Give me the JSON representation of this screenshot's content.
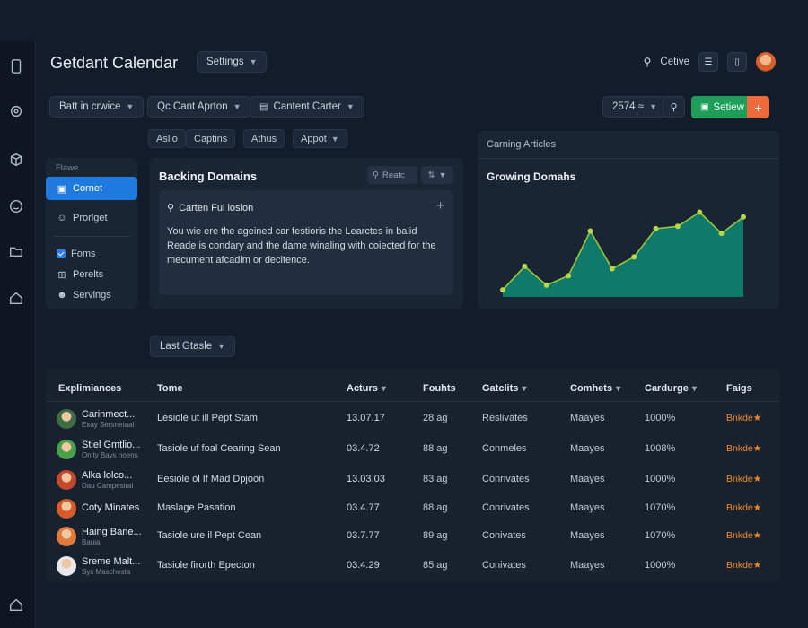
{
  "app": {
    "title": "Getdant Calendar"
  },
  "header": {
    "settings_label": "Settings",
    "search_label": "Cetive",
    "toolbar_dropdown": "Batt in crwice",
    "apps_dropdown": "Qc Cant Aprton",
    "content_dropdown": "Cantent Carter",
    "count_dropdown": "2574 ≈",
    "primary_button": "Setiew",
    "plus_button": "+"
  },
  "chips": [
    "Aslio",
    "Captins",
    "Athus",
    "Appot"
  ],
  "sidenav": {
    "section": "Flawe",
    "items": [
      {
        "label": "Cornet",
        "active": true
      },
      {
        "label": "Prorlget",
        "active": false
      },
      {
        "label": "Foms",
        "active": false
      },
      {
        "label": "Perelts",
        "active": false
      },
      {
        "label": "Servings",
        "active": false
      }
    ]
  },
  "mid_panel": {
    "title": "Backing Domains",
    "search_placeholder": "Reatc",
    "inner_heading": "Carten Ful losion",
    "body": "You wie ere the ageined car festioris the Learctes in balid Reade is condary and the dame winaling with coiected for the mecument afcadim or decitence."
  },
  "chart_panel": {
    "top_label": "Carning Articles",
    "title": "Growing Domahs"
  },
  "chart_data": {
    "type": "area",
    "title": "Growing Domahs",
    "x": [
      0,
      1,
      2,
      3,
      4,
      5,
      6,
      7,
      8,
      9,
      10,
      11
    ],
    "values": [
      3,
      13,
      5,
      9,
      28,
      12,
      17,
      29,
      30,
      36,
      27,
      34
    ],
    "ylim": [
      0,
      40
    ],
    "grid": false,
    "line_color": "#9ac43a",
    "fill_color": "#0f7a6a",
    "marker_color": "#b8d645"
  },
  "filter": {
    "label": "Last Gtasle"
  },
  "table": {
    "columns": [
      "Explimiances",
      "Tome",
      "Acturs",
      "Fouhts",
      "Gatclits",
      "Comhets",
      "Cardurge",
      "Faigs"
    ],
    "rows": [
      {
        "name": "Carinmect...",
        "sub": "Exay Sersnetaal",
        "tome": "Lesiole ut ill Pept Stam",
        "acturs": "13.07.17",
        "fouhts": "28 ag",
        "gate": "Reslivates",
        "com": "Maayes",
        "card": "1000%",
        "flag": "Bnkde★",
        "avatar": "#3f6b45"
      },
      {
        "name": "Stiel Gmtlio...",
        "sub": "Onity Bays noens",
        "tome": "Tasiole uf foal Cearing Sean",
        "acturs": "03.4.72",
        "fouhts": "88 ag",
        "gate": "Conmeles",
        "com": "Maayes",
        "card": "1008%",
        "flag": "Bnkde★",
        "avatar": "#4aa04a"
      },
      {
        "name": "Alka lolco...",
        "sub": "Dau Campesiral",
        "tome": "Eesiole ol If Mad Dpjoon",
        "acturs": "13.03.03",
        "fouhts": "83 ag",
        "gate": "Conrivates",
        "com": "Maayes",
        "card": "1000%",
        "flag": "Bnkde★",
        "avatar": "#c2492b"
      },
      {
        "name": "Coty Minates",
        "sub": "",
        "tome": "Maslage Pasation",
        "acturs": "03.4.77",
        "fouhts": "88 ag",
        "gate": "Conrivates",
        "com": "Maayes",
        "card": "1070%",
        "flag": "Bnkde★",
        "avatar": "#d85b2c"
      },
      {
        "name": "Haing Bane...",
        "sub": "Bauia",
        "tome": "Tasiole ure il Pept Cean",
        "acturs": "03.7.77",
        "fouhts": "89 ag",
        "gate": "Conivates",
        "com": "Maayes",
        "card": "1070%",
        "flag": "Bnkde★",
        "avatar": "#e07a3c"
      },
      {
        "name": "Sreme Malt...",
        "sub": "Sys Maschesta",
        "tome": "Tasiole firorth Epecton",
        "acturs": "03.4.29",
        "fouhts": "85 ag",
        "gate": "Conivates",
        "com": "Maayes",
        "card": "1000%",
        "flag": "Bnkde★",
        "avatar": "#e8e8ea"
      }
    ]
  }
}
